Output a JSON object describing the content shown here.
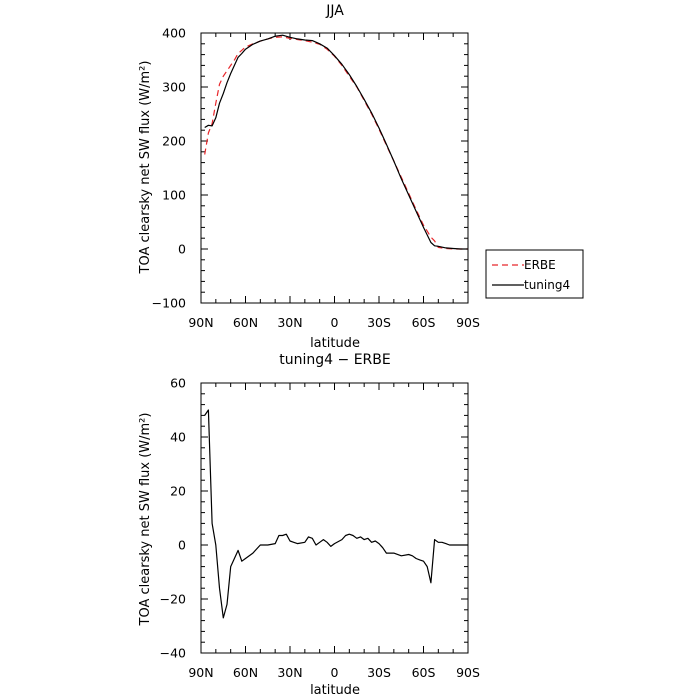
{
  "chart_data": [
    {
      "type": "line",
      "title": "JJA",
      "xlabel": "latitude",
      "ylabel": "TOA clearsky net SW flux (W/m²)",
      "xlim": [
        90,
        -90
      ],
      "ylim": [
        -100,
        400
      ],
      "x_ticks": [
        "90N",
        "60N",
        "30N",
        "0",
        "30S",
        "60S",
        "90S"
      ],
      "y_ticks": [
        "400",
        "300",
        "200",
        "100",
        "0",
        "−100"
      ],
      "legend": {
        "position": "right-bottom",
        "entries": [
          "ERBE",
          "tuning4"
        ]
      },
      "series": [
        {
          "name": "ERBE",
          "color": "#e8262a",
          "dash": "dashed",
          "points": [
            [
              87.5,
              175
            ],
            [
              85,
              215
            ],
            [
              82.5,
              232
            ],
            [
              80,
              270
            ],
            [
              77.5,
              305
            ],
            [
              75,
              320
            ],
            [
              72.5,
              330
            ],
            [
              70,
              340
            ],
            [
              67.5,
              350
            ],
            [
              65,
              362
            ],
            [
              62.5,
              368
            ],
            [
              60,
              374
            ],
            [
              55,
              380
            ],
            [
              50,
              385
            ],
            [
              45,
              389
            ],
            [
              40,
              392
            ],
            [
              35,
              393
            ],
            [
              30,
              390
            ],
            [
              25,
              388
            ],
            [
              20,
              386
            ],
            [
              15,
              383
            ],
            [
              10,
              379
            ],
            [
              5,
              370
            ],
            [
              0,
              357
            ],
            [
              -5,
              340
            ],
            [
              -10,
              320
            ],
            [
              -15,
              300
            ],
            [
              -20,
              275
            ],
            [
              -25,
              250
            ],
            [
              -30,
              222
            ],
            [
              -35,
              192
            ],
            [
              -40,
              163
            ],
            [
              -45,
              133
            ],
            [
              -50,
              103
            ],
            [
              -55,
              73
            ],
            [
              -60,
              44
            ],
            [
              -65,
              22
            ],
            [
              -67.5,
              15
            ],
            [
              -70,
              3
            ],
            [
              -75,
              1
            ],
            [
              -80,
              0
            ],
            [
              -85,
              0
            ],
            [
              -90,
              0
            ]
          ]
        },
        {
          "name": "tuning4",
          "color": "#000000",
          "dash": "solid",
          "points": [
            [
              87.5,
              225
            ],
            [
              85,
              229
            ],
            [
              82.5,
              228
            ],
            [
              80,
              243
            ],
            [
              77.5,
              270
            ],
            [
              75,
              288
            ],
            [
              72.5,
              308
            ],
            [
              70,
              325
            ],
            [
              67.5,
              340
            ],
            [
              65,
              355
            ],
            [
              62.5,
              362
            ],
            [
              60,
              370
            ],
            [
              55,
              379
            ],
            [
              50,
              385
            ],
            [
              45,
              389
            ],
            [
              40,
              394
            ],
            [
              35,
              396
            ],
            [
              30,
              392
            ],
            [
              25,
              389
            ],
            [
              20,
              387
            ],
            [
              15,
              386
            ],
            [
              10,
              380
            ],
            [
              5,
              372
            ],
            [
              0,
              358
            ],
            [
              -5,
              342
            ],
            [
              -10,
              323
            ],
            [
              -15,
              301
            ],
            [
              -20,
              277
            ],
            [
              -25,
              252
            ],
            [
              -30,
              224
            ],
            [
              -35,
              194
            ],
            [
              -40,
              163
            ],
            [
              -45,
              130
            ],
            [
              -50,
              100
            ],
            [
              -55,
              70
            ],
            [
              -60,
              40
            ],
            [
              -65,
              12
            ],
            [
              -67.5,
              6
            ],
            [
              -70,
              5
            ],
            [
              -75,
              2
            ],
            [
              -80,
              1
            ],
            [
              -85,
              0
            ],
            [
              -90,
              0
            ]
          ]
        }
      ]
    },
    {
      "type": "line",
      "title": "tuning4 − ERBE",
      "xlabel": "latitude",
      "ylabel": "TOA clearsky net SW flux (W/m²)",
      "xlim": [
        90,
        -90
      ],
      "ylim": [
        -40,
        60
      ],
      "x_ticks": [
        "90N",
        "60N",
        "30N",
        "0",
        "30S",
        "60S",
        "90S"
      ],
      "y_ticks": [
        "60",
        "40",
        "20",
        "0",
        "−20",
        "−40"
      ],
      "series": [
        {
          "name": "tuning4 − ERBE",
          "color": "#000000",
          "dash": "solid",
          "points": [
            [
              87.5,
              48
            ],
            [
              85,
              50
            ],
            [
              82.5,
              8
            ],
            [
              80,
              0
            ],
            [
              77.5,
              -16
            ],
            [
              75,
              -27
            ],
            [
              72.5,
              -22
            ],
            [
              70,
              -8
            ],
            [
              67.5,
              -5
            ],
            [
              65,
              -2
            ],
            [
              62.5,
              -6
            ],
            [
              60,
              -5
            ],
            [
              55,
              -3
            ],
            [
              50,
              0
            ],
            [
              45,
              0
            ],
            [
              40,
              0.5
            ],
            [
              37.5,
              3.5
            ],
            [
              35,
              3.5
            ],
            [
              32.5,
              4
            ],
            [
              30,
              1.5
            ],
            [
              27.5,
              1
            ],
            [
              25,
              0.5
            ],
            [
              20,
              1
            ],
            [
              17.5,
              3
            ],
            [
              15,
              2.5
            ],
            [
              12.5,
              0
            ],
            [
              10,
              1
            ],
            [
              7.5,
              2
            ],
            [
              5,
              1
            ],
            [
              2.5,
              -0.5
            ],
            [
              0,
              0.5
            ],
            [
              -5,
              2
            ],
            [
              -7.5,
              3.5
            ],
            [
              -10,
              4
            ],
            [
              -12.5,
              3.5
            ],
            [
              -15,
              2.5
            ],
            [
              -17.5,
              3
            ],
            [
              -20,
              2
            ],
            [
              -22.5,
              2.5
            ],
            [
              -25,
              1
            ],
            [
              -27.5,
              1.5
            ],
            [
              -30,
              0.5
            ],
            [
              -32.5,
              -1
            ],
            [
              -35,
              -3
            ],
            [
              -40,
              -3
            ],
            [
              -45,
              -4
            ],
            [
              -50,
              -3.5
            ],
            [
              -52.5,
              -4
            ],
            [
              -55,
              -5
            ],
            [
              -57.5,
              -5.5
            ],
            [
              -60,
              -6
            ],
            [
              -62.5,
              -8
            ],
            [
              -65,
              -14
            ],
            [
              -67.5,
              2
            ],
            [
              -70,
              1
            ],
            [
              -72.5,
              1
            ],
            [
              -75,
              0.5
            ],
            [
              -77.5,
              0
            ],
            [
              -80,
              0
            ],
            [
              -85,
              0
            ],
            [
              -90,
              0
            ]
          ]
        }
      ]
    }
  ]
}
